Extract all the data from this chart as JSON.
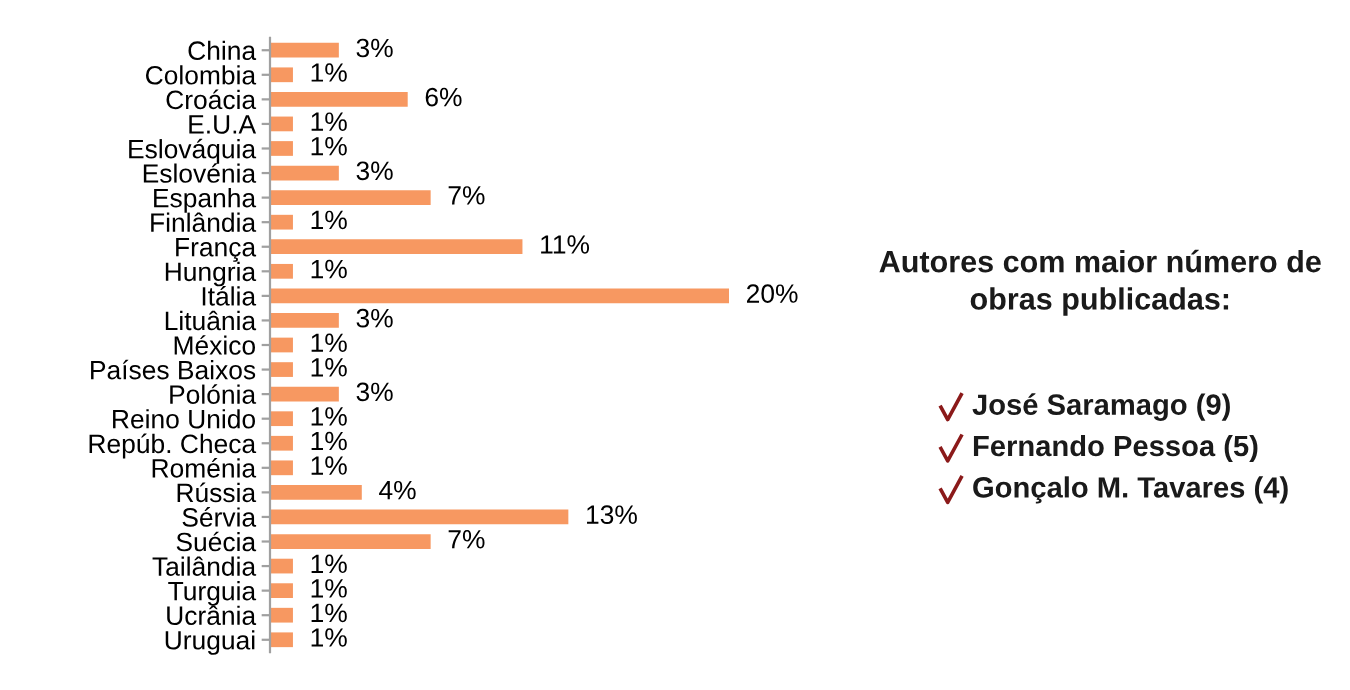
{
  "chart_data": {
    "type": "bar",
    "orientation": "horizontal",
    "color": "#f79861",
    "categories": [
      "China",
      "Colombia",
      "Croácia",
      "E.U.A",
      "Eslováquia",
      "Eslovénia",
      "Espanha",
      "Finlândia",
      "França",
      "Hungria",
      "Itália",
      "Lituânia",
      "México",
      "Países Baixos",
      "Polónia",
      "Reino Unido",
      "Repúb. Checa",
      "Roménia",
      "Rússia",
      "Sérvia",
      "Suécia",
      "Tailândia",
      "Turguia",
      "Ucrânia",
      "Uruguai"
    ],
    "values": [
      3,
      1,
      6,
      1,
      1,
      3,
      7,
      1,
      11,
      1,
      20,
      3,
      1,
      1,
      3,
      1,
      1,
      1,
      4,
      13,
      7,
      1,
      1,
      1,
      1
    ],
    "value_labels": [
      "3%",
      "1%",
      "6%",
      "1%",
      "1%",
      "3%",
      "7%",
      "1%",
      "11%",
      "1%",
      "20%",
      "3%",
      "1%",
      "1%",
      "3%",
      "1%",
      "1%",
      "1%",
      "4%",
      "13%",
      "7%",
      "1%",
      "1%",
      "1%",
      "1%"
    ],
    "annotations": [
      "Autores com maior número de obras publicadas:",
      "José Saramago (9)",
      "Fernando Pessoa (5)",
      "Gonçalo M. Tavares (4)"
    ],
    "grid": false,
    "legend": false
  }
}
